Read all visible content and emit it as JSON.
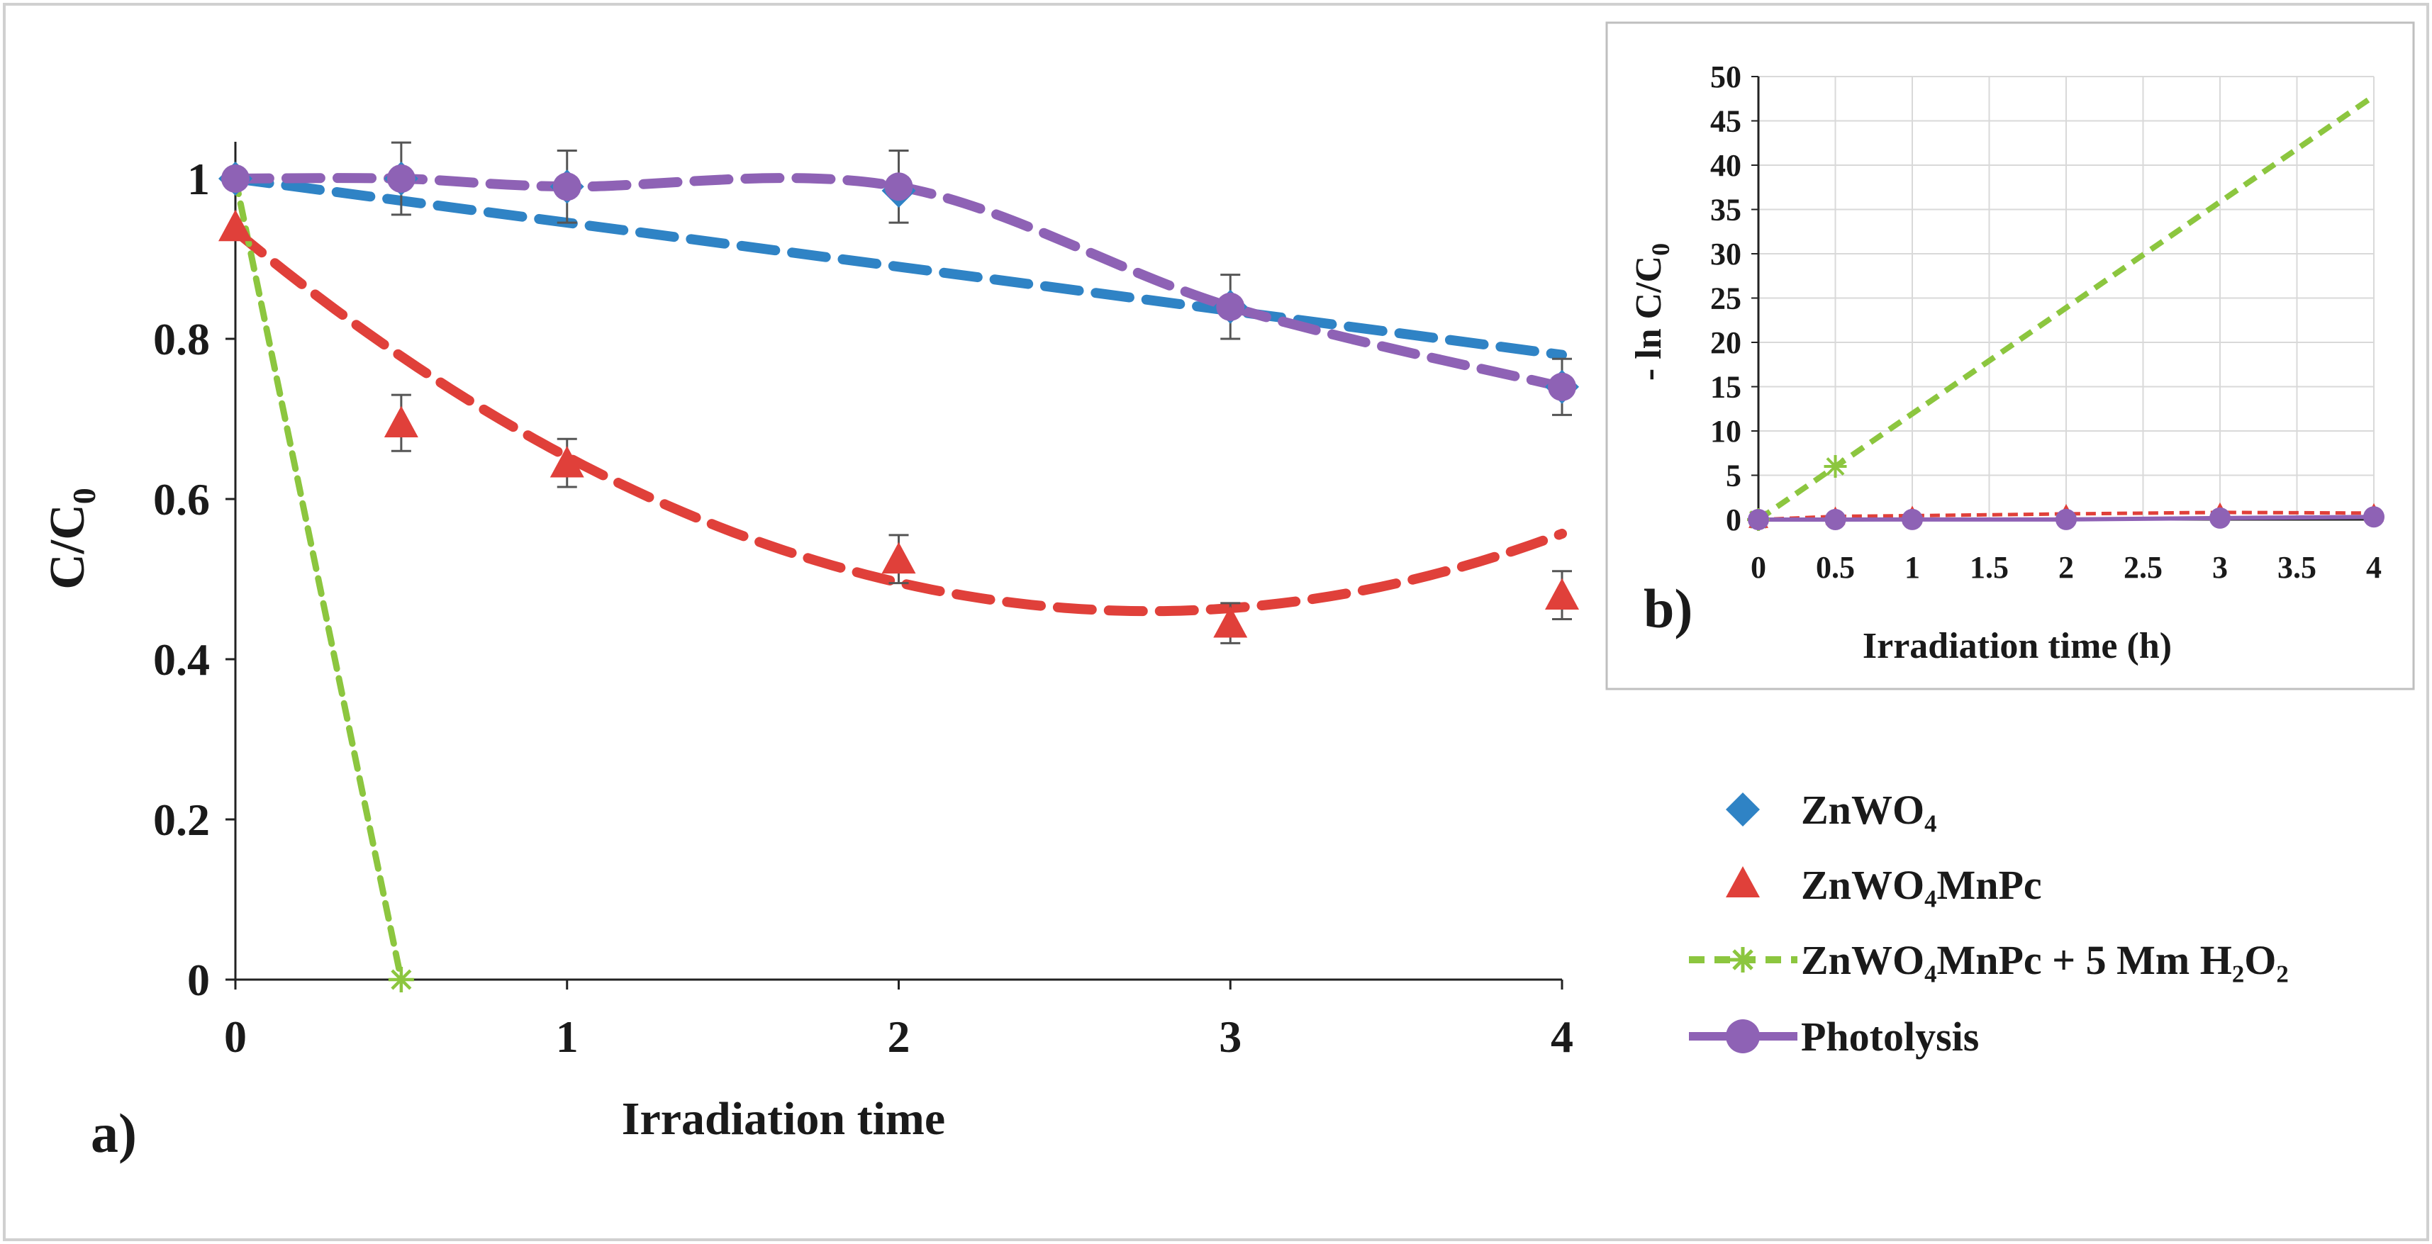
{
  "chart_data": [
    {
      "panel": "a)",
      "type": "scatter",
      "xlabel": "Irradiation time",
      "ylabel_main": "C/C",
      "ylabel_sub": "0",
      "xlim": [
        0,
        4
      ],
      "ylim": [
        0,
        1.1
      ],
      "xticks": [
        0,
        1,
        2,
        3,
        4
      ],
      "yticks": [
        0,
        0.2,
        0.4,
        0.6,
        0.8,
        1
      ],
      "xtick_labels": [
        "0",
        "1",
        "2",
        "3",
        "4"
      ],
      "ytick_labels": [
        "0",
        "0.2",
        "0.4",
        "0.6",
        "0.8",
        "1"
      ],
      "legend_position": "right",
      "series": [
        {
          "key": "znwo4",
          "name": "ZnWO₄",
          "color": "#2f83c5",
          "marker": "diamond",
          "x": [
            0,
            0.5,
            1,
            2,
            3,
            4
          ],
          "y": [
            1.0,
            1.0,
            0.99,
            0.985,
            0.84,
            0.74
          ],
          "trend": {
            "type": "linear",
            "x0": 0,
            "y0": 1.0,
            "x1": 4,
            "y1": 0.78
          },
          "dash": "dashed"
        },
        {
          "key": "znwo4mnpc",
          "name": "ZnWO₄MnPc",
          "color": "#e0403a",
          "marker": "triangle",
          "x": [
            0,
            0.5,
            1,
            2,
            3,
            4
          ],
          "y": [
            0.94,
            0.695,
            0.645,
            0.525,
            0.445,
            0.48
          ],
          "err": [
            0,
            0.035,
            0.03,
            0.03,
            0.025,
            0.03
          ],
          "trend": {
            "type": "poly2",
            "a": 0.0625,
            "b": -0.3445,
            "c": 0.9347,
            "x0": 0,
            "x1": 4
          },
          "dash": "dashed"
        },
        {
          "key": "h2o2",
          "name": "ZnWO₄MnPc  + 5 Mm H₂O₂",
          "color": "#8cc63f",
          "marker": "star",
          "x": [
            0,
            0.5
          ],
          "y": [
            1.0,
            0.0
          ],
          "dash": "dashed-line"
        },
        {
          "key": "photolysis",
          "name": "Photolysis",
          "color": "#8e62b5",
          "marker": "circle",
          "x": [
            0,
            0.5,
            1,
            2,
            3,
            4
          ],
          "y": [
            1.0,
            1.0,
            0.99,
            0.99,
            0.84,
            0.74
          ],
          "err": [
            0,
            0.045,
            0.045,
            0.045,
            0.04,
            0.035
          ],
          "trend": {
            "type": "smooth"
          },
          "dash": "dashed"
        }
      ]
    },
    {
      "panel": "b)",
      "type": "line",
      "xlabel": "Irradiation time (h)",
      "ylabel": "- ln C/C",
      "ylabel_sub": "0",
      "xlim": [
        0,
        4
      ],
      "ylim": [
        0,
        50
      ],
      "xticks": [
        0,
        0.5,
        1,
        1.5,
        2,
        2.5,
        3,
        3.5,
        4
      ],
      "yticks": [
        0,
        5,
        10,
        15,
        20,
        25,
        30,
        35,
        40,
        45,
        50
      ],
      "xtick_labels": [
        "0",
        "0.5",
        "1",
        "1.5",
        "2",
        "2.5",
        "3",
        "3.5",
        "4"
      ],
      "ytick_labels": [
        "0",
        "5",
        "10",
        "15",
        "20",
        "25",
        "30",
        "35",
        "40",
        "45",
        "50"
      ],
      "grid": true,
      "series": [
        {
          "key": "h2o2",
          "name": "ZnWO₄MnPc  + 5 Mm H₂O₂",
          "color": "#8cc63f",
          "marker": "star",
          "x": [
            0,
            0.5
          ],
          "y": [
            0,
            6.0
          ],
          "trend": {
            "x0": 0,
            "y0": 0,
            "x1": 4,
            "y1": 47.8
          }
        },
        {
          "key": "znwo4mnpc",
          "name": "ZnWO₄MnPc",
          "color": "#e0403a",
          "marker": "triangle",
          "x": [
            0,
            0.5,
            1,
            2,
            3,
            4
          ],
          "y": [
            0,
            0.36,
            0.44,
            0.64,
            0.81,
            0.73
          ]
        },
        {
          "key": "znwo4",
          "name": "ZnWO₄",
          "color": "#2f83c5",
          "marker": "diamond",
          "x": [
            0,
            0.5,
            1,
            2,
            3,
            4
          ],
          "y": [
            0,
            0,
            0.01,
            0.015,
            0.17,
            0.3
          ]
        },
        {
          "key": "photolysis",
          "name": "Photolysis",
          "color": "#8e62b5",
          "marker": "circle",
          "x": [
            0,
            0.5,
            1,
            2,
            3,
            4
          ],
          "y": [
            0,
            0,
            0.01,
            0.01,
            0.17,
            0.3
          ]
        }
      ]
    }
  ]
}
